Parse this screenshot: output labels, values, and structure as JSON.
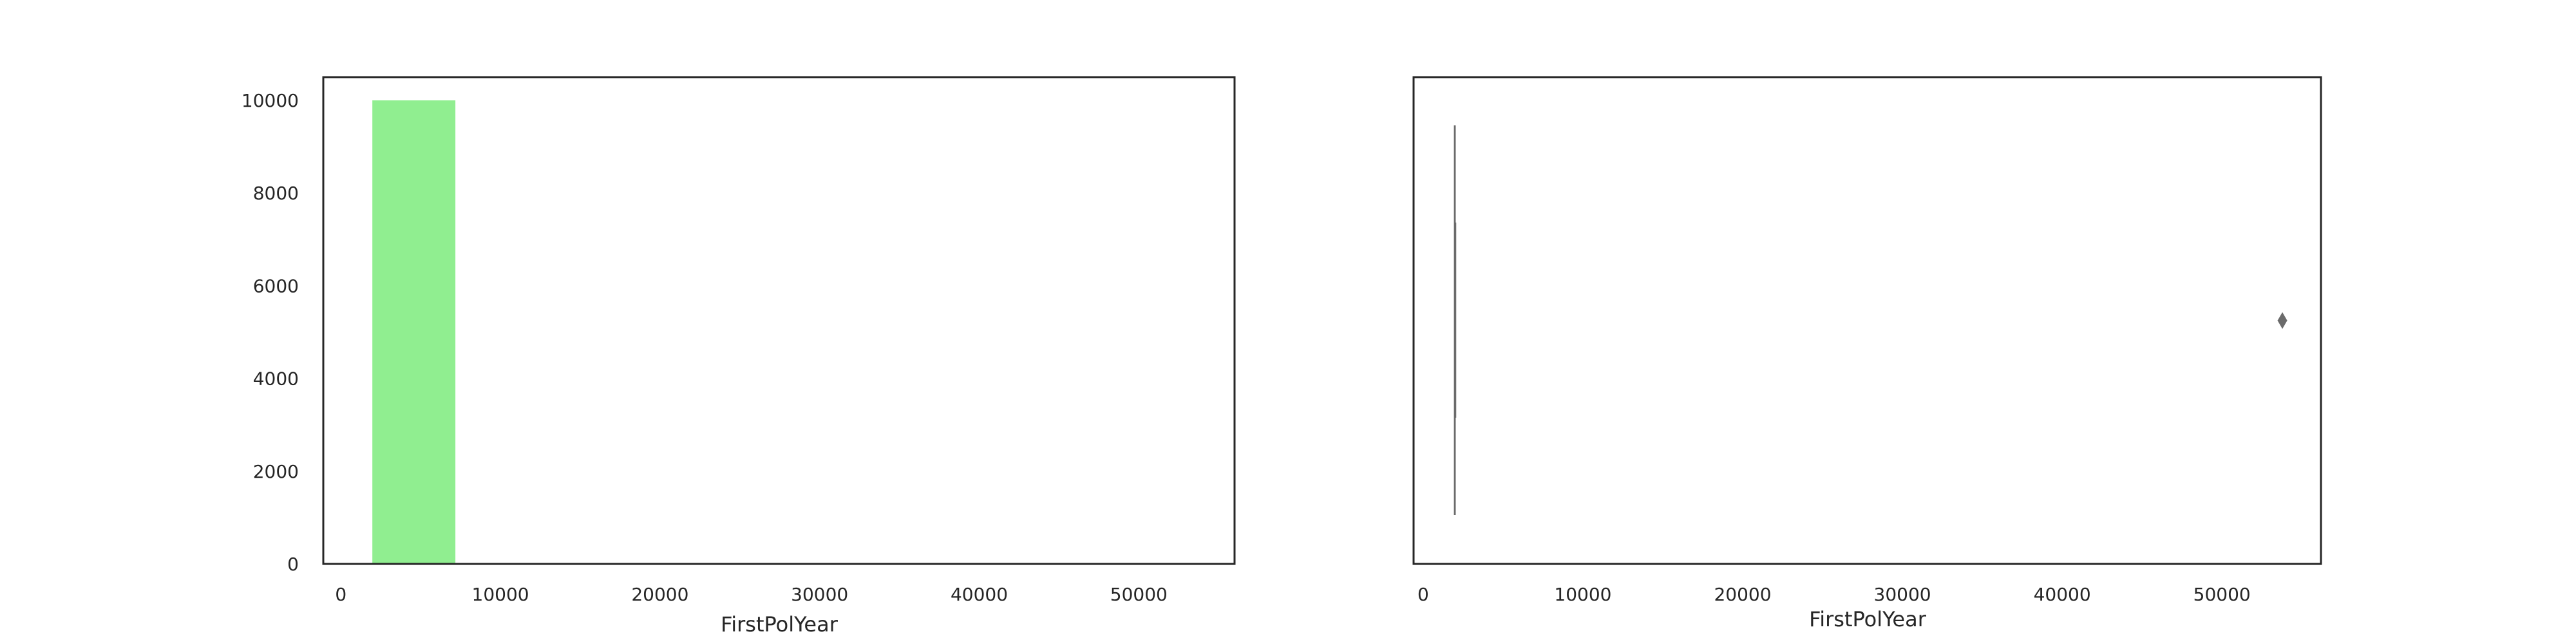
{
  "chart_data": [
    {
      "type": "bar",
      "subtype": "histogram",
      "title": "",
      "xlabel": "FirstPolYear",
      "ylabel": "",
      "xlim": [
        -1100,
        56000
      ],
      "ylim": [
        0,
        10500
      ],
      "xticks": [
        0,
        10000,
        20000,
        30000,
        40000,
        50000
      ],
      "xtick_labels": [
        "0",
        "10000",
        "20000",
        "30000",
        "40000",
        "50000"
      ],
      "yticks": [
        0,
        2000,
        4000,
        6000,
        8000,
        10000
      ],
      "ytick_labels": [
        "0",
        "2000",
        "4000",
        "6000",
        "8000",
        "10000"
      ],
      "bins": [
        {
          "x0": 1974,
          "x1": 7177,
          "count": 9999
        },
        {
          "x0": 7177,
          "x1": 12380,
          "count": 0
        },
        {
          "x0": 12380,
          "x1": 17583,
          "count": 0
        },
        {
          "x0": 17583,
          "x1": 22786,
          "count": 0
        },
        {
          "x0": 22786,
          "x1": 27989,
          "count": 0
        },
        {
          "x0": 27989,
          "x1": 33192,
          "count": 0
        },
        {
          "x0": 33192,
          "x1": 38395,
          "count": 0
        },
        {
          "x0": 38395,
          "x1": 43598,
          "count": 0
        },
        {
          "x0": 43598,
          "x1": 48801,
          "count": 0
        },
        {
          "x0": 48801,
          "x1": 54004,
          "count": 1
        }
      ],
      "bar_color": "#90ee90",
      "grid": false
    },
    {
      "type": "box",
      "title": "",
      "xlabel": "FirstPolYear",
      "ylabel": "",
      "xlim": [
        -600,
        56200
      ],
      "xticks": [
        0,
        10000,
        20000,
        30000,
        40000,
        50000
      ],
      "xtick_labels": [
        "0",
        "10000",
        "20000",
        "30000",
        "40000",
        "50000"
      ],
      "box": {
        "whisker_low": 1974,
        "q1": 1980,
        "median": 1986,
        "q3": 1992,
        "whisker_high": 1998
      },
      "outliers": [
        53784
      ],
      "color": "#6b6b6b",
      "grid": false
    }
  ]
}
